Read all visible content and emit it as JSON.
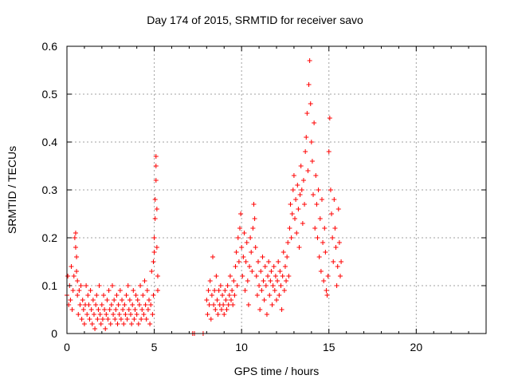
{
  "chart_data": {
    "type": "scatter",
    "title": "Day 174 of 2015, SRMTID for receiver savo",
    "xlabel": "GPS time / hours",
    "ylabel": "SRMTID / TECUs",
    "xlim": [
      0,
      24
    ],
    "ylim": [
      0,
      0.6
    ],
    "xticks": [
      0,
      5,
      10,
      15,
      20
    ],
    "yticks": [
      0,
      0.1,
      0.2,
      0.3,
      0.4,
      0.5,
      0.6
    ],
    "ytick_labels": [
      "0",
      "0.1",
      "0.2",
      "0.3",
      "0.4",
      "0.5",
      "0.6"
    ],
    "grid": true,
    "marker": "+",
    "color": "#ff0000",
    "series": [
      {
        "points": [
          [
            0.0,
            0.08
          ],
          [
            0.05,
            0.12
          ],
          [
            0.1,
            0.06
          ],
          [
            0.15,
            0.1
          ],
          [
            0.2,
            0.07
          ],
          [
            0.25,
            0.14
          ],
          [
            0.3,
            0.05
          ],
          [
            0.35,
            0.09
          ],
          [
            0.4,
            0.12
          ],
          [
            0.45,
            0.2
          ],
          [
            0.5,
            0.21
          ],
          [
            0.5,
            0.18
          ],
          [
            0.55,
            0.16
          ],
          [
            0.55,
            0.13
          ],
          [
            0.6,
            0.08
          ],
          [
            0.6,
            0.11
          ],
          [
            0.65,
            0.04
          ],
          [
            0.7,
            0.09
          ],
          [
            0.75,
            0.06
          ],
          [
            0.8,
            0.1
          ],
          [
            0.85,
            0.03
          ],
          [
            0.9,
            0.07
          ],
          [
            0.95,
            0.05
          ],
          [
            1.0,
            0.02
          ],
          [
            1.05,
            0.06
          ],
          [
            1.1,
            0.1
          ],
          [
            1.15,
            0.04
          ],
          [
            1.2,
            0.08
          ],
          [
            1.25,
            0.06
          ],
          [
            1.3,
            0.03
          ],
          [
            1.35,
            0.09
          ],
          [
            1.4,
            0.05
          ],
          [
            1.45,
            0.02
          ],
          [
            1.5,
            0.07
          ],
          [
            1.55,
            0.04
          ],
          [
            1.6,
            0.01
          ],
          [
            1.65,
            0.06
          ],
          [
            1.7,
            0.08
          ],
          [
            1.75,
            0.03
          ],
          [
            1.8,
            0.05
          ],
          [
            1.85,
            0.1
          ],
          [
            1.9,
            0.04
          ],
          [
            1.95,
            0.02
          ],
          [
            2.0,
            0.06
          ],
          [
            2.05,
            0.03
          ],
          [
            2.1,
            0.08
          ],
          [
            2.15,
            0.05
          ],
          [
            2.2,
            0.01
          ],
          [
            2.25,
            0.04
          ],
          [
            2.3,
            0.07
          ],
          [
            2.35,
            0.03
          ],
          [
            2.4,
            0.09
          ],
          [
            2.45,
            0.05
          ],
          [
            2.5,
            0.02
          ],
          [
            2.55,
            0.06
          ],
          [
            2.6,
            0.1
          ],
          [
            2.65,
            0.04
          ],
          [
            2.7,
            0.07
          ],
          [
            2.75,
            0.03
          ],
          [
            2.8,
            0.05
          ],
          [
            2.85,
            0.08
          ],
          [
            2.9,
            0.02
          ],
          [
            2.95,
            0.06
          ],
          [
            3.0,
            0.04
          ],
          [
            3.05,
            0.09
          ],
          [
            3.1,
            0.03
          ],
          [
            3.15,
            0.07
          ],
          [
            3.2,
            0.05
          ],
          [
            3.25,
            0.02
          ],
          [
            3.3,
            0.06
          ],
          [
            3.35,
            0.04
          ],
          [
            3.4,
            0.08
          ],
          [
            3.45,
            0.03
          ],
          [
            3.5,
            0.1
          ],
          [
            3.55,
            0.05
          ],
          [
            3.6,
            0.07
          ],
          [
            3.65,
            0.04
          ],
          [
            3.7,
            0.02
          ],
          [
            3.75,
            0.06
          ],
          [
            3.8,
            0.09
          ],
          [
            3.85,
            0.03
          ],
          [
            3.9,
            0.05
          ],
          [
            3.95,
            0.08
          ],
          [
            4.0,
            0.04
          ],
          [
            4.05,
            0.07
          ],
          [
            4.1,
            0.02
          ],
          [
            4.15,
            0.06
          ],
          [
            4.2,
            0.1
          ],
          [
            4.25,
            0.03
          ],
          [
            4.3,
            0.05
          ],
          [
            4.35,
            0.08
          ],
          [
            4.4,
            0.04
          ],
          [
            4.45,
            0.11
          ],
          [
            4.5,
            0.06
          ],
          [
            4.55,
            0.03
          ],
          [
            4.6,
            0.09
          ],
          [
            4.65,
            0.05
          ],
          [
            4.7,
            0.07
          ],
          [
            4.75,
            0.02
          ],
          [
            4.8,
            0.06
          ],
          [
            4.85,
            0.13
          ],
          [
            4.9,
            0.04
          ],
          [
            4.95,
            0.08
          ],
          [
            4.95,
            0.15
          ],
          [
            5.0,
            0.17
          ],
          [
            5.0,
            0.2
          ],
          [
            5.05,
            0.24
          ],
          [
            5.05,
            0.28
          ],
          [
            5.1,
            0.32
          ],
          [
            5.1,
            0.37
          ],
          [
            5.1,
            0.35
          ],
          [
            5.15,
            0.26
          ],
          [
            5.15,
            0.18
          ],
          [
            5.2,
            0.12
          ],
          [
            5.2,
            0.09
          ],
          [
            7.2,
            0.0
          ],
          [
            7.3,
            0.0
          ],
          [
            7.8,
            0.0
          ],
          [
            8.0,
            0.07
          ],
          [
            8.05,
            0.04
          ],
          [
            8.1,
            0.09
          ],
          [
            8.15,
            0.06
          ],
          [
            8.2,
            0.11
          ],
          [
            8.25,
            0.03
          ],
          [
            8.3,
            0.08
          ],
          [
            8.35,
            0.16
          ],
          [
            8.4,
            0.06
          ],
          [
            8.45,
            0.09
          ],
          [
            8.5,
            0.05
          ],
          [
            8.55,
            0.12
          ],
          [
            8.6,
            0.07
          ],
          [
            8.65,
            0.04
          ],
          [
            8.7,
            0.09
          ],
          [
            8.75,
            0.06
          ],
          [
            8.8,
            0.1
          ],
          [
            8.85,
            0.05
          ],
          [
            8.9,
            0.08
          ],
          [
            8.95,
            0.06
          ],
          [
            9.0,
            0.04
          ],
          [
            9.05,
            0.09
          ],
          [
            9.1,
            0.07
          ],
          [
            9.15,
            0.05
          ],
          [
            9.2,
            0.1
          ],
          [
            9.25,
            0.06
          ],
          [
            9.3,
            0.08
          ],
          [
            9.35,
            0.12
          ],
          [
            9.4,
            0.07
          ],
          [
            9.45,
            0.09
          ],
          [
            9.5,
            0.06
          ],
          [
            9.55,
            0.11
          ],
          [
            9.6,
            0.08
          ],
          [
            9.65,
            0.14
          ],
          [
            9.7,
            0.17
          ],
          [
            9.75,
            0.1
          ],
          [
            9.8,
            0.2
          ],
          [
            9.85,
            0.15
          ],
          [
            9.9,
            0.22
          ],
          [
            9.95,
            0.25
          ],
          [
            10.0,
            0.18
          ],
          [
            10.05,
            0.12
          ],
          [
            10.1,
            0.16
          ],
          [
            10.15,
            0.21
          ],
          [
            10.2,
            0.09
          ],
          [
            10.25,
            0.15
          ],
          [
            10.3,
            0.19
          ],
          [
            10.35,
            0.11
          ],
          [
            10.4,
            0.06
          ],
          [
            10.45,
            0.14
          ],
          [
            10.5,
            0.2
          ],
          [
            10.55,
            0.17
          ],
          [
            10.6,
            0.13
          ],
          [
            10.65,
            0.22
          ],
          [
            10.7,
            0.27
          ],
          [
            10.75,
            0.24
          ],
          [
            10.8,
            0.18
          ],
          [
            10.85,
            0.12
          ],
          [
            10.9,
            0.08
          ],
          [
            10.95,
            0.15
          ],
          [
            11.0,
            0.1
          ],
          [
            11.05,
            0.05
          ],
          [
            11.1,
            0.13
          ],
          [
            11.15,
            0.09
          ],
          [
            11.2,
            0.16
          ],
          [
            11.25,
            0.11
          ],
          [
            11.3,
            0.07
          ],
          [
            11.35,
            0.14
          ],
          [
            11.4,
            0.1
          ],
          [
            11.45,
            0.04
          ],
          [
            11.5,
            0.12
          ],
          [
            11.55,
            0.15
          ],
          [
            11.6,
            0.08
          ],
          [
            11.65,
            0.11
          ],
          [
            11.7,
            0.13
          ],
          [
            11.75,
            0.06
          ],
          [
            11.8,
            0.1
          ],
          [
            11.85,
            0.14
          ],
          [
            11.9,
            0.09
          ],
          [
            11.95,
            0.12
          ],
          [
            12.0,
            0.07
          ],
          [
            12.05,
            0.11
          ],
          [
            12.1,
            0.15
          ],
          [
            12.15,
            0.08
          ],
          [
            12.2,
            0.13
          ],
          [
            12.25,
            0.1
          ],
          [
            12.3,
            0.05
          ],
          [
            12.35,
            0.12
          ],
          [
            12.4,
            0.17
          ],
          [
            12.45,
            0.09
          ],
          [
            12.5,
            0.14
          ],
          [
            12.55,
            0.11
          ],
          [
            12.6,
            0.16
          ],
          [
            12.65,
            0.19
          ],
          [
            12.7,
            0.12
          ],
          [
            12.75,
            0.22
          ],
          [
            12.8,
            0.27
          ],
          [
            12.85,
            0.2
          ],
          [
            12.9,
            0.25
          ],
          [
            12.95,
            0.3
          ],
          [
            13.0,
            0.33
          ],
          [
            13.05,
            0.24
          ],
          [
            13.1,
            0.28
          ],
          [
            13.15,
            0.21
          ],
          [
            13.2,
            0.31
          ],
          [
            13.25,
            0.26
          ],
          [
            13.3,
            0.18
          ],
          [
            13.35,
            0.29
          ],
          [
            13.4,
            0.35
          ],
          [
            13.45,
            0.3
          ],
          [
            13.5,
            0.23
          ],
          [
            13.55,
            0.32
          ],
          [
            13.6,
            0.27
          ],
          [
            13.65,
            0.38
          ],
          [
            13.7,
            0.41
          ],
          [
            13.75,
            0.46
          ],
          [
            13.8,
            0.34
          ],
          [
            13.85,
            0.52
          ],
          [
            13.9,
            0.57
          ],
          [
            13.95,
            0.48
          ],
          [
            14.0,
            0.4
          ],
          [
            14.05,
            0.36
          ],
          [
            14.1,
            0.29
          ],
          [
            14.15,
            0.44
          ],
          [
            14.2,
            0.22
          ],
          [
            14.25,
            0.33
          ],
          [
            14.3,
            0.27
          ],
          [
            14.35,
            0.2
          ],
          [
            14.4,
            0.3
          ],
          [
            14.45,
            0.16
          ],
          [
            14.5,
            0.24
          ],
          [
            14.55,
            0.13
          ],
          [
            14.6,
            0.28
          ],
          [
            14.65,
            0.19
          ],
          [
            14.7,
            0.11
          ],
          [
            14.75,
            0.22
          ],
          [
            14.8,
            0.17
          ],
          [
            14.85,
            0.09
          ],
          [
            14.9,
            0.08
          ],
          [
            14.95,
            0.12
          ],
          [
            15.0,
            0.38
          ],
          [
            15.05,
            0.45
          ],
          [
            15.1,
            0.3
          ],
          [
            15.15,
            0.25
          ],
          [
            15.2,
            0.2
          ],
          [
            15.25,
            0.15
          ],
          [
            15.3,
            0.28
          ],
          [
            15.35,
            0.22
          ],
          [
            15.4,
            0.18
          ],
          [
            15.45,
            0.1
          ],
          [
            15.5,
            0.14
          ],
          [
            15.55,
            0.26
          ],
          [
            15.6,
            0.19
          ],
          [
            15.65,
            0.12
          ],
          [
            15.7,
            0.15
          ]
        ]
      }
    ]
  }
}
